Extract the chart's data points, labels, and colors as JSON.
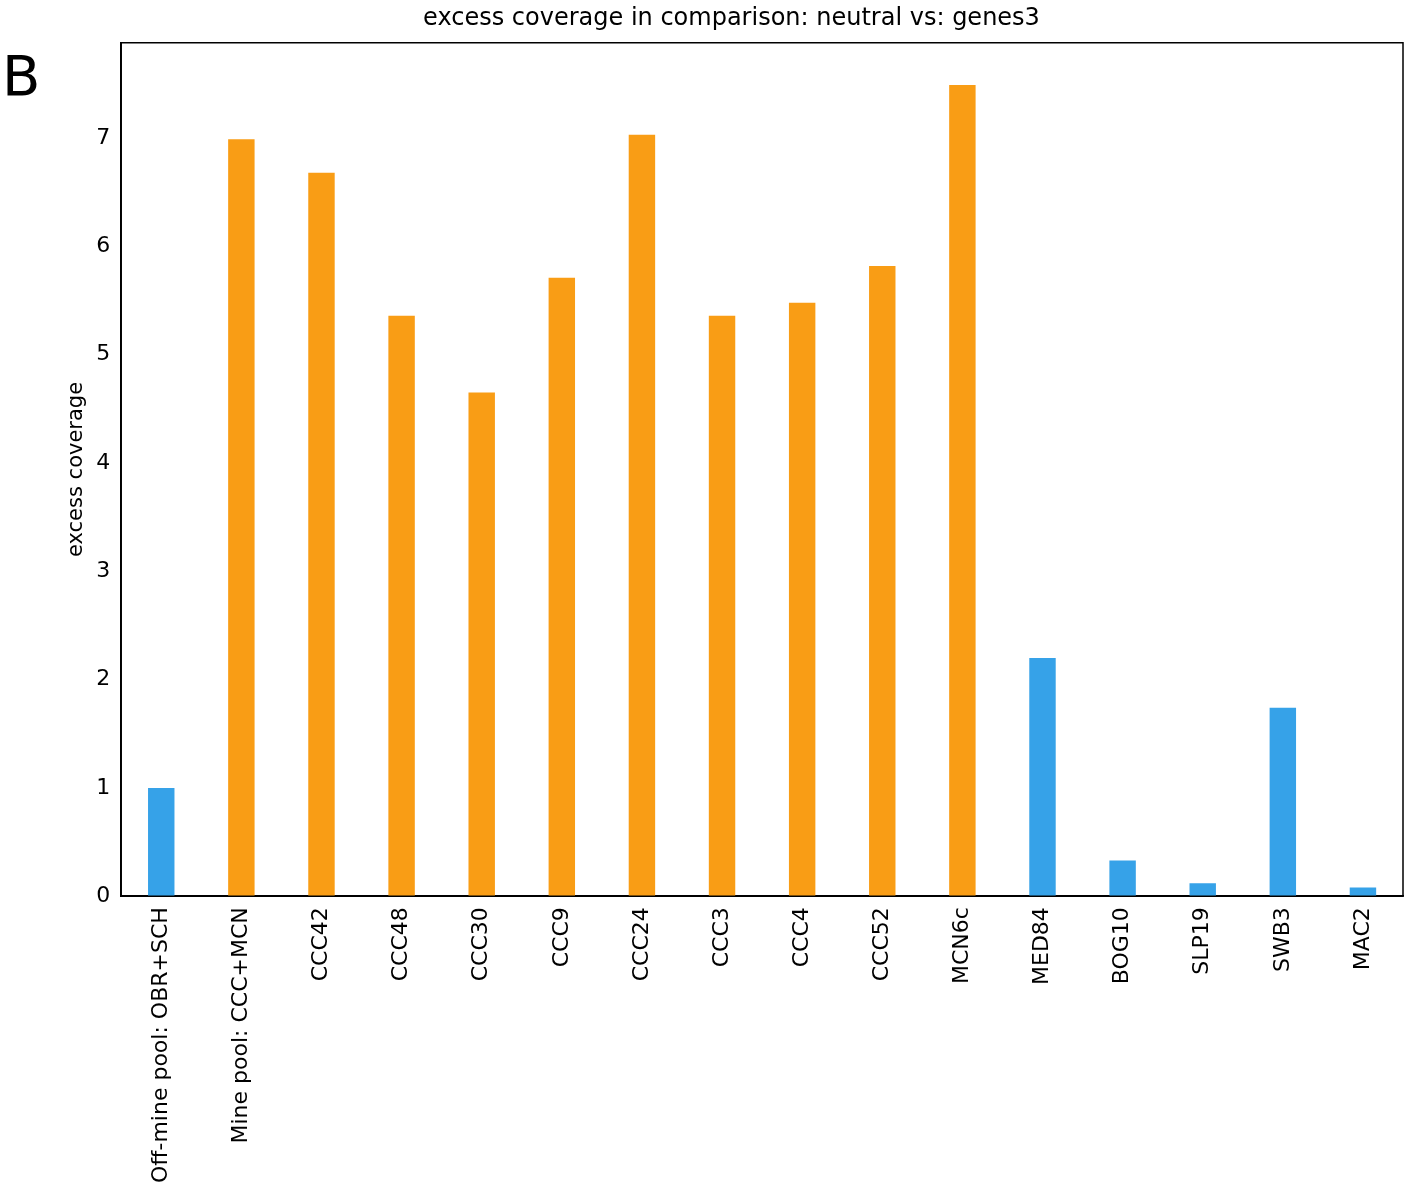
{
  "chart_data": {
    "type": "bar",
    "title": "excess coverage in comparison: neutral vs: genes3",
    "ylabel": "excess coverage",
    "annotations": [
      "B"
    ],
    "categories": [
      "Off-mine pool: OBR+SCH",
      "Mine pool: CCC+MCN",
      "CCC42",
      "CCC48",
      "CCC30",
      "CCC9",
      "CCC24",
      "CCC3",
      "CCC4",
      "CCC52",
      "MCN6c",
      "MED84",
      "BOG10",
      "SLP19",
      "SWB3",
      "MAC2"
    ],
    "values": [
      1.0,
      6.99,
      6.68,
      5.36,
      4.65,
      5.71,
      7.03,
      5.36,
      5.48,
      5.82,
      7.49,
      2.2,
      0.33,
      0.12,
      1.74,
      0.08
    ],
    "colors": [
      "#36a2e8",
      "#f99d15",
      "#f99d15",
      "#f99d15",
      "#f99d15",
      "#f99d15",
      "#f99d15",
      "#f99d15",
      "#f99d15",
      "#f99d15",
      "#f99d15",
      "#36a2e8",
      "#36a2e8",
      "#36a2e8",
      "#36a2e8",
      "#36a2e8"
    ],
    "ylim": [
      0,
      7.88
    ],
    "yticks": [
      0,
      1,
      2,
      3,
      4,
      5,
      6,
      7
    ]
  }
}
